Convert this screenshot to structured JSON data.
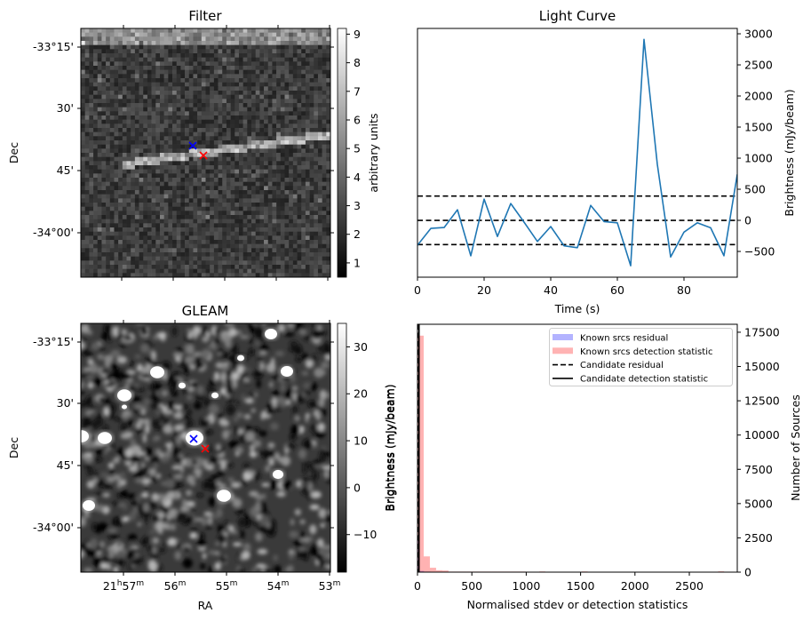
{
  "chart_data": [
    {
      "id": "filter",
      "type": "heatmap",
      "title": "Filter",
      "ylabel": "Dec",
      "xlabel": "",
      "yticks": [
        "-33°15'",
        "30'",
        "45'",
        "-34°00'"
      ],
      "xticks_labeled": false,
      "colorbar": {
        "label": "arbitrary units",
        "ticks": [
          "1",
          "2",
          "3",
          "4",
          "5",
          "6",
          "7",
          "8",
          "9"
        ],
        "range": [
          0.5,
          9.2
        ],
        "colormap": "gray"
      },
      "features": [
        "bright horizontal band along top edge",
        "diagonal bright streak rising left-to-right through centre"
      ],
      "markers": [
        {
          "symbol": "x",
          "color": "#0000ff",
          "name": "blue marker"
        },
        {
          "symbol": "x",
          "color": "#ff0000",
          "name": "red marker"
        }
      ]
    },
    {
      "id": "light-curve",
      "type": "line",
      "title": "Light Curve",
      "xlabel": "Time (s)",
      "ylabel": "Brightness (mJy/beam)",
      "xlim": [
        0,
        96
      ],
      "ylim": [
        -914,
        3086
      ],
      "xticks": [
        0,
        20,
        40,
        60,
        80
      ],
      "yticks": [
        -500,
        0,
        500,
        1000,
        1500,
        2000,
        2500,
        3000
      ],
      "series": [
        {
          "name": "light curve",
          "color": "#1f77b4",
          "x": [
            0,
            4,
            8,
            12,
            16,
            20,
            24,
            28,
            32,
            36,
            40,
            44,
            48,
            52,
            56,
            60,
            64,
            68,
            72,
            76,
            80,
            84,
            88,
            92,
            96
          ],
          "y": [
            -400,
            -130,
            -115,
            170,
            -570,
            340,
            -260,
            270,
            -30,
            -340,
            -100,
            -410,
            -440,
            240,
            -20,
            -40,
            -730,
            2910,
            900,
            -590,
            -190,
            -40,
            -120,
            -570,
            740
          ]
        }
      ],
      "hlines": [
        {
          "y": 390,
          "style": "dashed",
          "color": "#000000"
        },
        {
          "y": 0,
          "style": "dashed",
          "color": "#000000"
        },
        {
          "y": -390,
          "style": "dashed",
          "color": "#000000"
        }
      ]
    },
    {
      "id": "gleam",
      "type": "heatmap",
      "title": "GLEAM",
      "xlabel": "RA",
      "ylabel": "Dec",
      "xticks": [
        {
          "base": "21",
          "sup1": "h",
          "min": "57",
          "sup2": "m"
        },
        {
          "base": "",
          "sup1": "",
          "min": "56",
          "sup2": "m"
        },
        {
          "base": "",
          "sup1": "",
          "min": "55",
          "sup2": "m"
        },
        {
          "base": "",
          "sup1": "",
          "min": "54",
          "sup2": "m"
        },
        {
          "base": "",
          "sup1": "",
          "min": "53",
          "sup2": "m"
        }
      ],
      "yticks": [
        "-33°15'",
        "30'",
        "45'",
        "-34°00'"
      ],
      "colorbar": {
        "label": "Brightness (mJy/beam)",
        "ticks": [
          "−10",
          "0",
          "10",
          "20",
          "30"
        ],
        "range": [
          -18,
          35
        ],
        "colormap": "gray"
      },
      "features": [
        "point sources on noisy background"
      ],
      "markers": [
        {
          "symbol": "x",
          "color": "#0000ff",
          "name": "blue marker"
        },
        {
          "symbol": "x",
          "color": "#ff0000",
          "name": "red marker"
        }
      ]
    },
    {
      "id": "histogram",
      "type": "bar",
      "title": "",
      "xlabel": "Normalised stdev or detection statistics",
      "ylabel_left": "Brightness (mJy/beam)",
      "ylabel_right": "Number of Sources",
      "xlim": [
        0,
        2941
      ],
      "ylim": [
        0,
        18080
      ],
      "xticks": [
        0,
        500,
        1000,
        1500,
        2000,
        2500
      ],
      "yticks": [
        0,
        2500,
        5000,
        7500,
        10000,
        12500,
        15000,
        17500
      ],
      "series": [
        {
          "name": "Known srcs residual",
          "color": "#0000ff",
          "alpha": 0.3,
          "bins": [
            [
              0,
              12,
              2400
            ],
            [
              12,
              60,
              90
            ],
            [
              60,
              120,
              40
            ],
            [
              120,
              200,
              20
            ]
          ]
        },
        {
          "name": "Known srcs detection statistic",
          "color": "#ff0000",
          "alpha": 0.3,
          "bins": [
            [
              0,
              57,
              17250
            ],
            [
              57,
              114,
              1150
            ],
            [
              114,
              171,
              320
            ],
            [
              171,
              228,
              140
            ],
            [
              228,
              285,
              120
            ],
            [
              285,
              342,
              40
            ],
            [
              342,
              399,
              40
            ],
            [
              399,
              456,
              40
            ],
            [
              456,
              513,
              40
            ],
            [
              513,
              570,
              40
            ],
            [
              570,
              627,
              40
            ],
            [
              627,
              684,
              40
            ],
            [
              684,
              741,
              40
            ],
            [
              741,
              798,
              40
            ],
            [
              798,
              855,
              40
            ],
            [
              855,
              912,
              40
            ],
            [
              912,
              969,
              40
            ],
            [
              969,
              1000,
              40
            ],
            [
              1120,
              1175,
              50
            ],
            [
              1510,
              1565,
              50
            ],
            [
              2765,
              2820,
              60
            ]
          ]
        }
      ],
      "vlines": [
        {
          "name": "Candidate residual",
          "x": 6,
          "style": "dashed",
          "color": "#000000"
        },
        {
          "name": "Candidate detection statistic",
          "x": 14,
          "style": "solid",
          "color": "#000000"
        }
      ],
      "legend": {
        "placement": "top-right",
        "entries": [
          {
            "label": "Known srcs residual",
            "kind": "patch",
            "color": "#b3b3ff"
          },
          {
            "label": "Known srcs detection statistic",
            "kind": "patch",
            "color": "#ffb3b3"
          },
          {
            "label": "Candidate residual",
            "kind": "dashed",
            "color": "#000000"
          },
          {
            "label": "Candidate detection statistic",
            "kind": "solid",
            "color": "#000000"
          }
        ]
      }
    }
  ]
}
